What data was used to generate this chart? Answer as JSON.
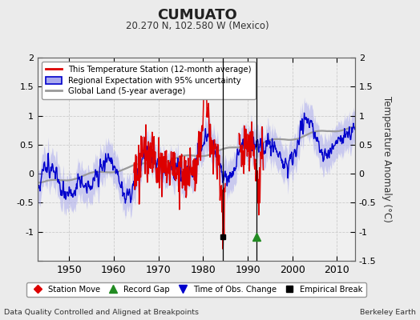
{
  "title": "CUMUATO",
  "subtitle": "20.270 N, 102.580 W (Mexico)",
  "ylabel": "Temperature Anomaly (°C)",
  "footer_left": "Data Quality Controlled and Aligned at Breakpoints",
  "footer_right": "Berkeley Earth",
  "xlim": [
    1943,
    2014
  ],
  "ylim": [
    -1.5,
    2.0
  ],
  "yticks": [
    -1.5,
    -1.0,
    -0.5,
    0.0,
    0.5,
    1.0,
    1.5,
    2.0
  ],
  "xticks": [
    1950,
    1960,
    1970,
    1980,
    1990,
    2000,
    2010
  ],
  "bg_color": "#ebebeb",
  "plot_bg_color": "#f0f0f0",
  "grid_color": "#cccccc",
  "red_line_color": "#dd0000",
  "blue_line_color": "#0000cc",
  "blue_fill_color": "#aaaaee",
  "gray_line_color": "#999999",
  "vline1_x": 1984.5,
  "vline2_x": 1992.0,
  "marker_black_x": 1984.5,
  "marker_black_y": -1.08,
  "marker_green_x": 1992.0,
  "marker_green_y": -1.08,
  "legend_labels": [
    "This Temperature Station (12-month average)",
    "Regional Expectation with 95% uncertainty",
    "Global Land (5-year average)"
  ],
  "bottom_legend_labels": [
    "Station Move",
    "Record Gap",
    "Time of Obs. Change",
    "Empirical Break"
  ]
}
